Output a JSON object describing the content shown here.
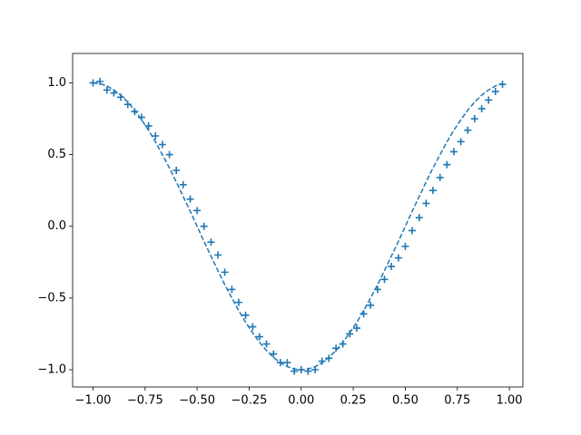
{
  "chart_data": {
    "type": "line",
    "x": [
      -1.0,
      -0.967,
      -0.933,
      -0.9,
      -0.867,
      -0.833,
      -0.8,
      -0.767,
      -0.733,
      -0.7,
      -0.667,
      -0.633,
      -0.6,
      -0.567,
      -0.533,
      -0.5,
      -0.467,
      -0.433,
      -0.4,
      -0.367,
      -0.333,
      -0.3,
      -0.267,
      -0.233,
      -0.2,
      -0.167,
      -0.133,
      -0.1,
      -0.067,
      -0.033,
      0.0,
      0.033,
      0.067,
      0.1,
      0.133,
      0.167,
      0.2,
      0.233,
      0.267,
      0.3,
      0.333,
      0.367,
      0.4,
      0.433,
      0.467,
      0.5,
      0.533,
      0.567,
      0.6,
      0.633,
      0.667,
      0.7,
      0.733,
      0.767,
      0.8,
      0.833,
      0.867,
      0.9,
      0.933,
      0.967
    ],
    "series": [
      {
        "color": "#1f77b4",
        "linestyle": "dashed",
        "values": [
          1.0,
          0.995,
          0.978,
          0.951,
          0.914,
          0.866,
          0.809,
          0.743,
          0.669,
          0.588,
          0.5,
          0.407,
          0.309,
          0.208,
          0.105,
          0.0,
          -0.105,
          -0.208,
          -0.309,
          -0.407,
          -0.5,
          -0.588,
          -0.669,
          -0.743,
          -0.809,
          -0.866,
          -0.914,
          -0.951,
          -0.978,
          -0.995,
          -1.0,
          -0.995,
          -0.978,
          -0.951,
          -0.914,
          -0.866,
          -0.809,
          -0.743,
          -0.669,
          -0.588,
          -0.5,
          -0.407,
          -0.309,
          -0.208,
          -0.105,
          0.0,
          0.105,
          0.208,
          0.309,
          0.407,
          0.5,
          0.588,
          0.669,
          0.743,
          0.809,
          0.866,
          0.914,
          0.951,
          0.978,
          0.995
        ]
      },
      {
        "color": "#1f77b4",
        "marker": "+",
        "values": [
          1.0,
          1.01,
          0.95,
          0.93,
          0.9,
          0.85,
          0.8,
          0.76,
          0.7,
          0.63,
          0.57,
          0.5,
          0.39,
          0.29,
          0.19,
          0.11,
          0.0,
          -0.11,
          -0.2,
          -0.32,
          -0.44,
          -0.53,
          -0.62,
          -0.7,
          -0.77,
          -0.82,
          -0.89,
          -0.95,
          -0.95,
          -1.01,
          -1.0,
          -1.01,
          -1.0,
          -0.94,
          -0.92,
          -0.85,
          -0.82,
          -0.75,
          -0.71,
          -0.61,
          -0.55,
          -0.44,
          -0.37,
          -0.28,
          -0.22,
          -0.14,
          -0.03,
          0.06,
          0.16,
          0.25,
          0.34,
          0.43,
          0.52,
          0.59,
          0.67,
          0.75,
          0.82,
          0.88,
          0.94,
          0.99
        ]
      }
    ],
    "xlim": [
      -1.098,
      1.065
    ],
    "ylim": [
      -1.12,
      1.205
    ],
    "xticks": [
      {
        "value": -1,
        "label": "−1.00"
      },
      {
        "value": -0.75,
        "label": "−0.75"
      },
      {
        "value": -0.5,
        "label": "−0.50"
      },
      {
        "value": -0.25,
        "label": "−0.25"
      },
      {
        "value": 0,
        "label": "0.00"
      },
      {
        "value": 0.25,
        "label": "0.25"
      },
      {
        "value": 0.5,
        "label": "0.50"
      },
      {
        "value": 0.75,
        "label": "0.75"
      },
      {
        "value": 1,
        "label": "1.00"
      }
    ],
    "yticks": [
      {
        "value": -1,
        "label": "−1.0"
      },
      {
        "value": -0.5,
        "label": "−0.5"
      },
      {
        "value": 0,
        "label": "0.0"
      },
      {
        "value": 0.5,
        "label": "0.5"
      },
      {
        "value": 1,
        "label": "1.0"
      }
    ],
    "grid": false
  }
}
